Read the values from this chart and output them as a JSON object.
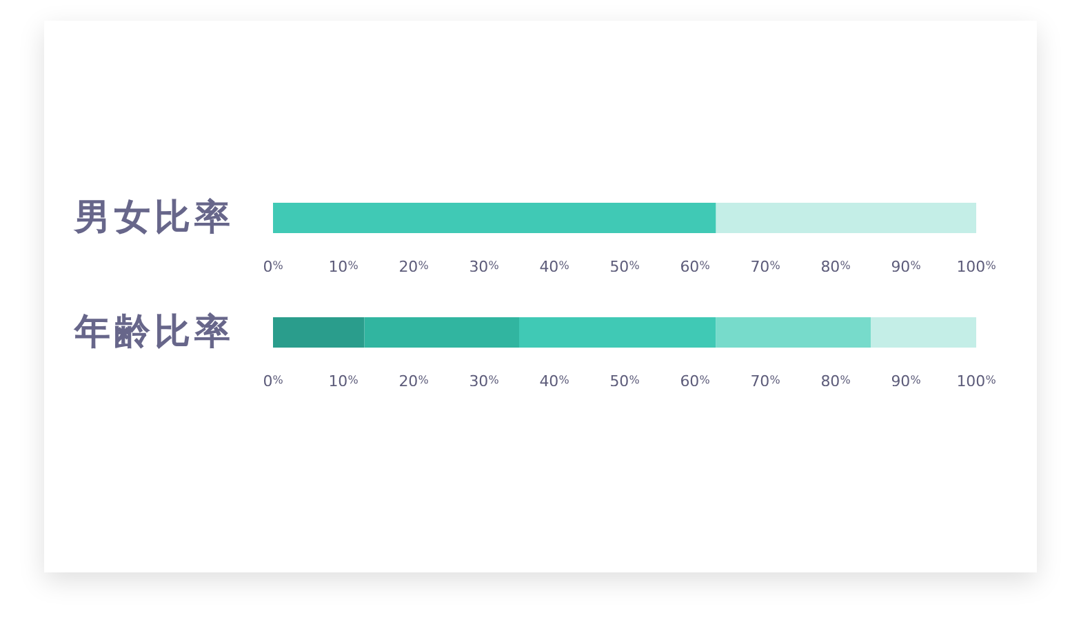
{
  "chart_data": [
    {
      "type": "bar",
      "orientation": "horizontal",
      "stacked": true,
      "categories": [
        "男女比率"
      ],
      "series": [
        {
          "color": "#40c9b5",
          "values": [
            63
          ]
        },
        {
          "color": "#c4eee7",
          "values": [
            37
          ]
        }
      ],
      "xlim": [
        0,
        100
      ],
      "xticks": [
        {
          "value": 0,
          "label": "0%"
        },
        {
          "value": 10,
          "label": "10%"
        },
        {
          "value": 20,
          "label": "20%"
        },
        {
          "value": 30,
          "label": "30%"
        },
        {
          "value": 40,
          "label": "40%"
        },
        {
          "value": 50,
          "label": "50%"
        },
        {
          "value": 60,
          "label": "60%"
        },
        {
          "value": 70,
          "label": "70%"
        },
        {
          "value": 80,
          "label": "80%"
        },
        {
          "value": 90,
          "label": "90%"
        },
        {
          "value": 100,
          "label": "100%"
        }
      ]
    },
    {
      "type": "bar",
      "orientation": "horizontal",
      "stacked": true,
      "categories": [
        "年齢比率"
      ],
      "series": [
        {
          "color": "#2a9d8c",
          "values": [
            13
          ]
        },
        {
          "color": "#31b5a0",
          "values": [
            22
          ]
        },
        {
          "color": "#40c9b5",
          "values": [
            28
          ]
        },
        {
          "color": "#77dbcb",
          "values": [
            22
          ]
        },
        {
          "color": "#c4eee7",
          "values": [
            15
          ]
        }
      ],
      "xlim": [
        0,
        100
      ],
      "xticks": [
        {
          "value": 0,
          "label": "0%"
        },
        {
          "value": 10,
          "label": "10%"
        },
        {
          "value": 20,
          "label": "20%"
        },
        {
          "value": 30,
          "label": "30%"
        },
        {
          "value": 40,
          "label": "40%"
        },
        {
          "value": 50,
          "label": "50%"
        },
        {
          "value": 60,
          "label": "60%"
        },
        {
          "value": 70,
          "label": "70%"
        },
        {
          "value": 80,
          "label": "80%"
        },
        {
          "value": 90,
          "label": "90%"
        },
        {
          "value": 100,
          "label": "100%"
        }
      ]
    }
  ]
}
